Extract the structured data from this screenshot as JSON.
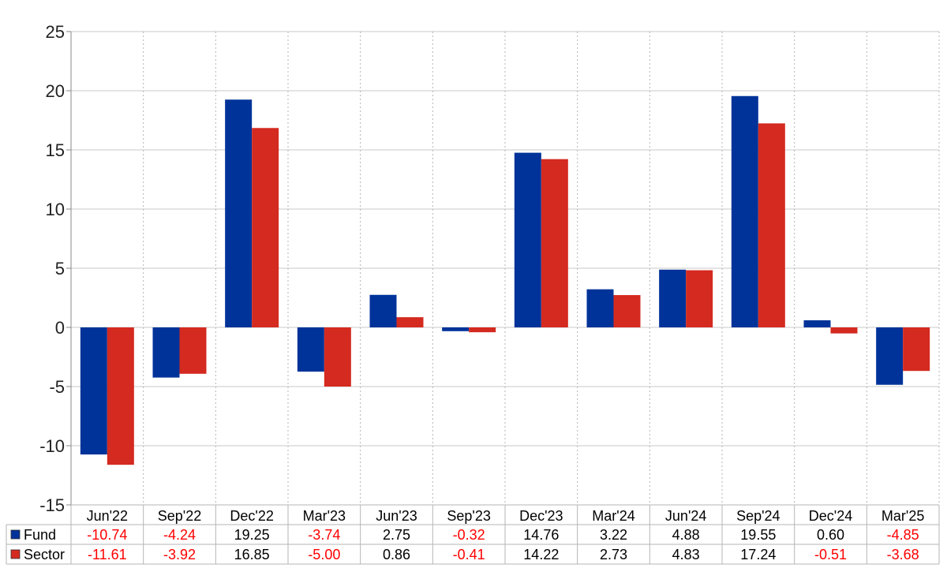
{
  "chart_data": {
    "type": "bar",
    "categories": [
      "Jun'22",
      "Sep'22",
      "Dec'22",
      "Mar'23",
      "Jun'23",
      "Sep'23",
      "Dec'23",
      "Mar'24",
      "Jun'24",
      "Sep'24",
      "Dec'24",
      "Mar'25"
    ],
    "series": [
      {
        "name": "Fund",
        "color": "#003399",
        "values": [
          -10.74,
          -4.24,
          19.25,
          -3.74,
          2.75,
          -0.32,
          14.76,
          3.22,
          4.88,
          19.55,
          0.6,
          -4.85
        ],
        "labels": [
          "-10.74",
          "-4.24",
          "19.25",
          "-3.74",
          "2.75",
          "-0.32",
          "14.76",
          "3.22",
          "4.88",
          "19.55",
          "0.60",
          "-4.85"
        ]
      },
      {
        "name": "Sector",
        "color": "#d42a20",
        "values": [
          -11.61,
          -3.92,
          16.85,
          -5.0,
          0.86,
          -0.41,
          14.22,
          2.73,
          4.83,
          17.24,
          -0.51,
          -3.68
        ],
        "labels": [
          "-11.61",
          "-3.92",
          "16.85",
          "-5.00",
          "0.86",
          "-0.41",
          "14.22",
          "2.73",
          "4.83",
          "17.24",
          "-0.51",
          "-3.68"
        ]
      }
    ],
    "yticks": [
      "25",
      "20",
      "15",
      "10",
      "5",
      "0",
      "-5",
      "-10",
      "-15"
    ],
    "ylim": [
      -15,
      25
    ],
    "grid": true,
    "legend": "bottom data table",
    "negative_label_color": "#ff0000",
    "positive_label_color": "#000000"
  }
}
